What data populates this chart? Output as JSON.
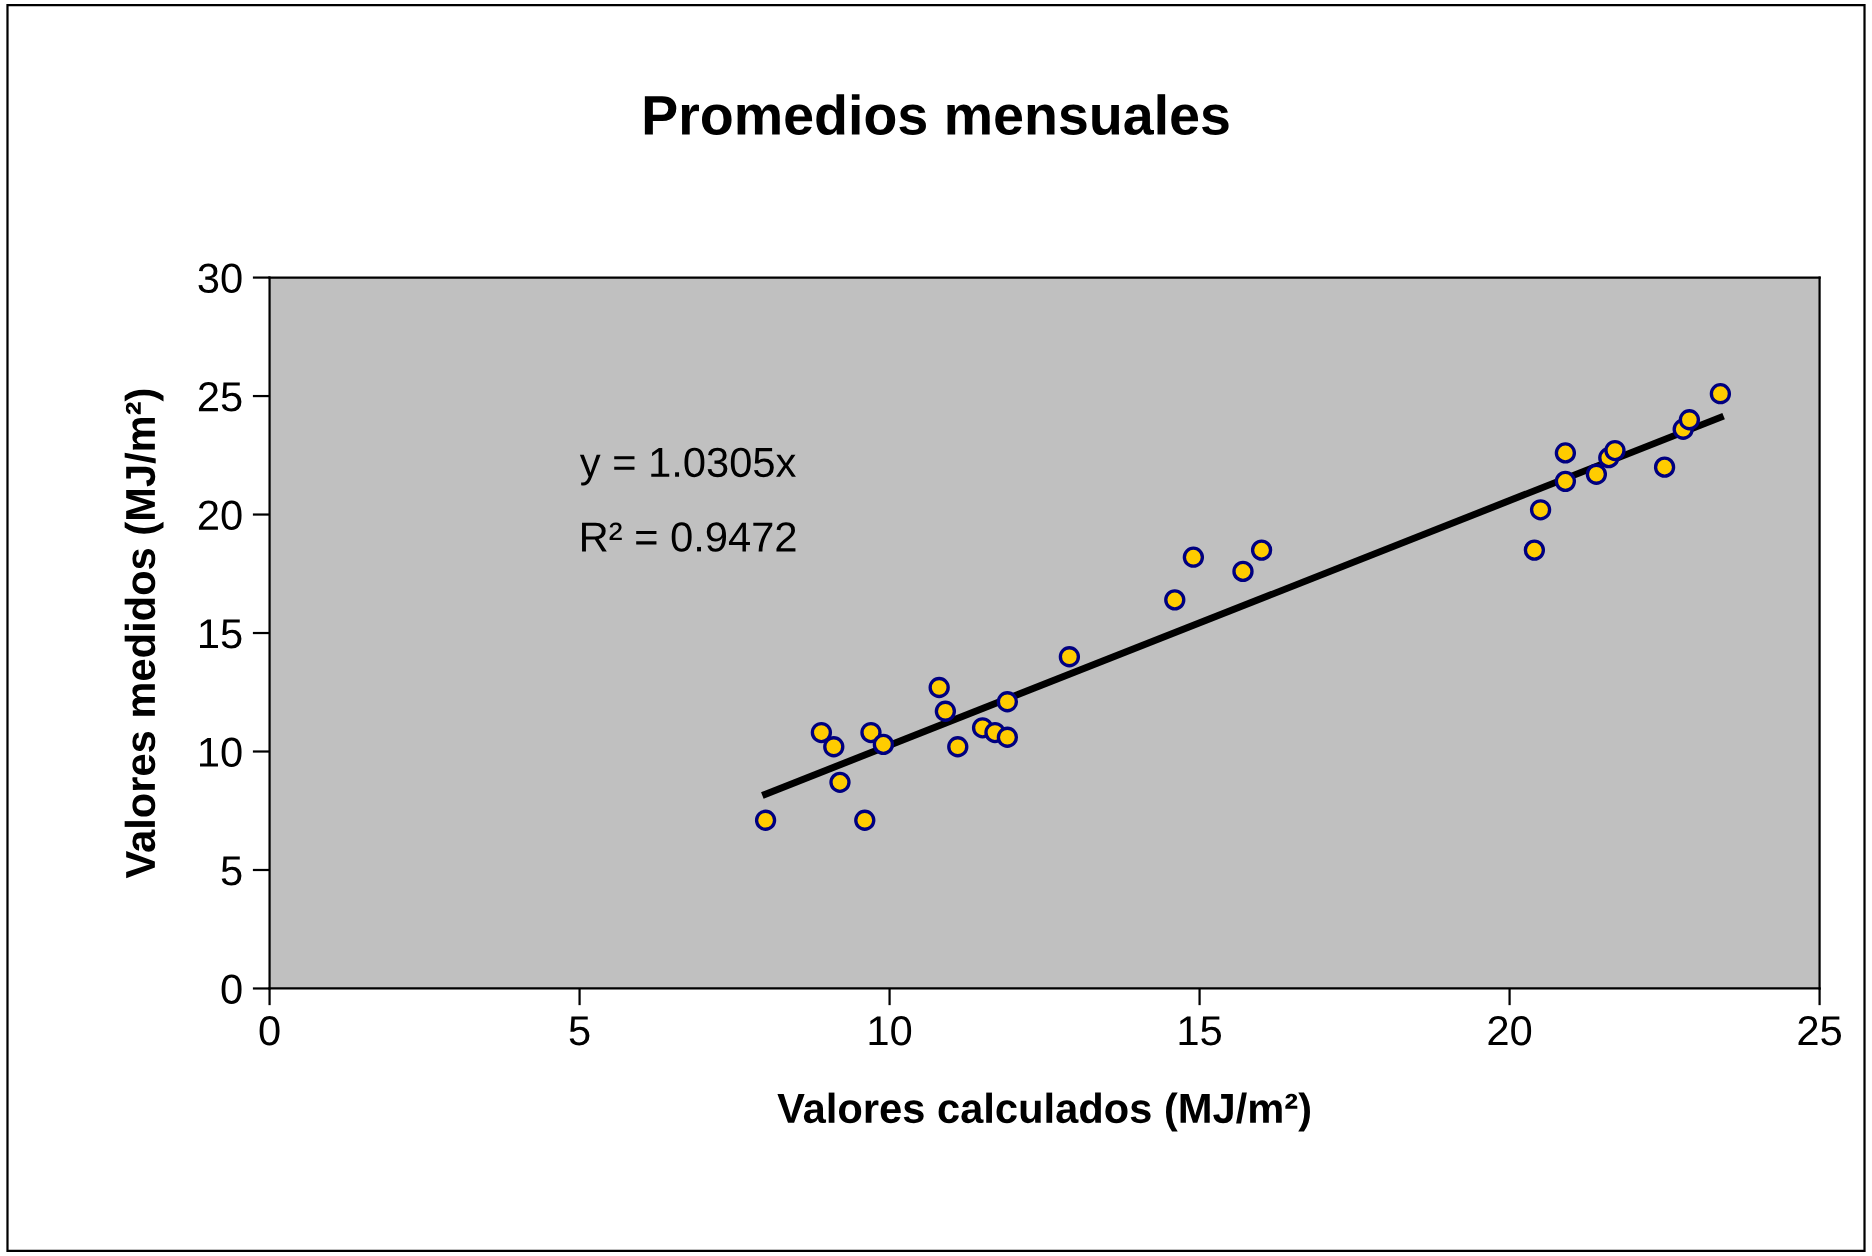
{
  "chart_data": {
    "type": "scatter",
    "title": "Promedios mensuales",
    "xlabel": "Valores calculados (MJ/m²)",
    "ylabel": "Valores medidos (MJ/m²)",
    "xlim": [
      0,
      25
    ],
    "xticks": [
      0,
      5,
      10,
      15,
      20,
      25
    ],
    "ylim": [
      0,
      30
    ],
    "yticks": [
      0,
      5,
      10,
      15,
      20,
      25,
      30
    ],
    "grid": false,
    "annotations": [
      "y = 1.0305x",
      "R² = 0.9472"
    ],
    "series": [
      {
        "color": "#ffcc00",
        "marker": "circle",
        "x": [
          8.0,
          8.9,
          9.1,
          9.2,
          9.6,
          9.7,
          9.9,
          10.8,
          10.9,
          11.1,
          11.5,
          11.7,
          11.9,
          11.9,
          12.9,
          14.6,
          14.9,
          15.7,
          16.0,
          20.4,
          20.5,
          20.9,
          20.9,
          21.4,
          21.6,
          21.7,
          22.5,
          22.8,
          22.9,
          23.4
        ],
        "values": [
          7.1,
          10.8,
          10.2,
          8.7,
          7.1,
          10.8,
          10.3,
          12.7,
          11.7,
          10.2,
          11.0,
          10.8,
          10.6,
          12.1,
          14.0,
          16.4,
          18.2,
          17.6,
          18.5,
          18.5,
          20.2,
          22.6,
          21.4,
          21.7,
          22.4,
          22.7,
          22.0,
          23.6,
          24.0,
          25.1
        ]
      },
      {
        "type": "line",
        "color": "#000000",
        "x": [
          8.0,
          23.4
        ],
        "values": [
          8.2,
          24.1
        ]
      }
    ]
  }
}
